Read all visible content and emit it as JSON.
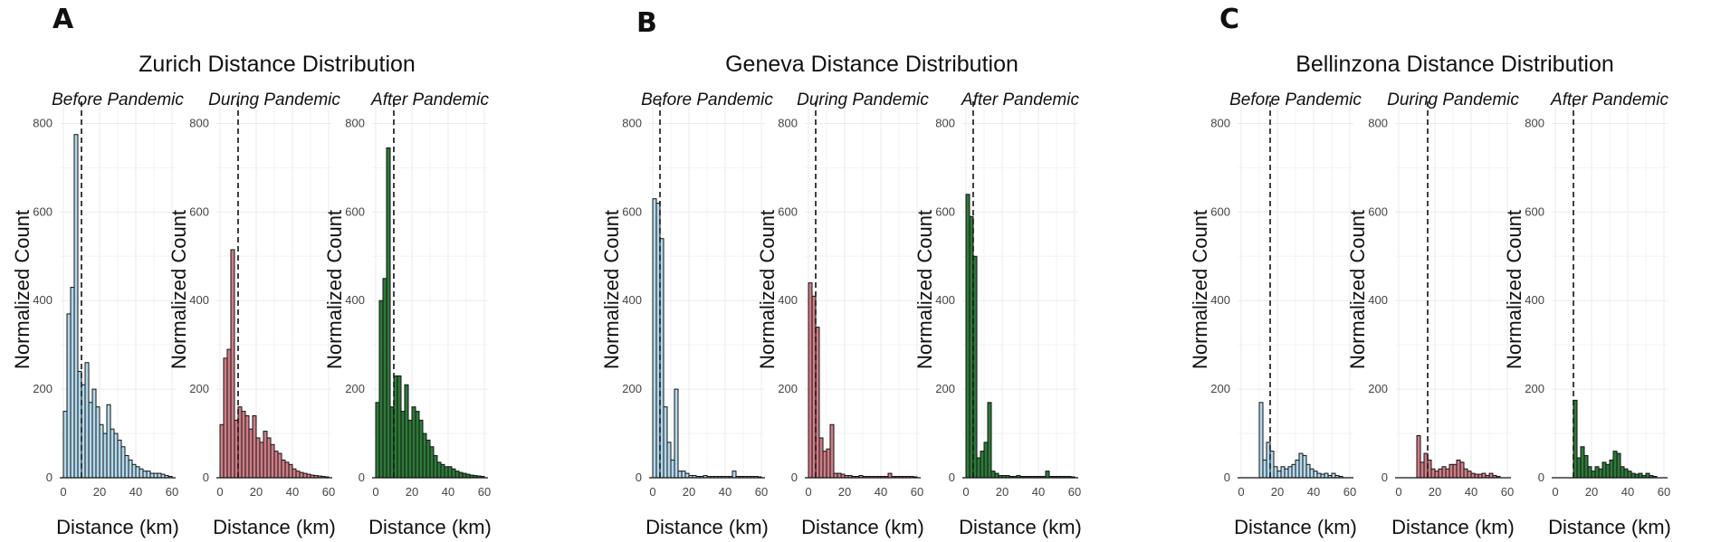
{
  "colors": {
    "before": "#b3d9ee",
    "during": "#cf7d86",
    "after": "#2d7a39"
  },
  "chart_data": [
    {
      "type": "bar",
      "panel": "A",
      "title": "Zurich Distance Distribution",
      "subtitle": "Before Pandemic",
      "colorKey": "before",
      "xlabel": "Distance (km)",
      "ylabel": "Normalized Count",
      "xlim": [
        -2,
        62
      ],
      "ylim": [
        0,
        850
      ],
      "binwidth": 2,
      "xticks": [
        0,
        20,
        40,
        60
      ],
      "yticks": [
        0,
        200,
        400,
        600,
        800
      ],
      "median": 10,
      "values": [
        150,
        370,
        430,
        775,
        240,
        210,
        260,
        170,
        200,
        160,
        120,
        100,
        165,
        110,
        100,
        85,
        70,
        50,
        40,
        30,
        25,
        20,
        15,
        15,
        10,
        10,
        10,
        8,
        5,
        3
      ]
    },
    {
      "type": "bar",
      "panel": "",
      "title": "",
      "subtitle": "During Pandemic",
      "colorKey": "during",
      "xlabel": "Distance (km)",
      "ylabel": "Normalized Count",
      "xlim": [
        -2,
        62
      ],
      "ylim": [
        0,
        850
      ],
      "binwidth": 2,
      "xticks": [
        0,
        20,
        40,
        60
      ],
      "yticks": [
        0,
        200,
        400,
        600,
        800
      ],
      "median": 10,
      "values": [
        120,
        270,
        290,
        515,
        130,
        160,
        150,
        140,
        110,
        140,
        90,
        80,
        105,
        90,
        75,
        60,
        55,
        40,
        35,
        30,
        20,
        15,
        12,
        10,
        8,
        6,
        5,
        4,
        3,
        2
      ]
    },
    {
      "type": "bar",
      "panel": "",
      "title": "",
      "subtitle": "After Pandemic",
      "colorKey": "after",
      "xlabel": "Distance (km)",
      "ylabel": "Normalized Count",
      "xlim": [
        -2,
        62
      ],
      "ylim": [
        0,
        850
      ],
      "binwidth": 2,
      "xticks": [
        0,
        20,
        40,
        60
      ],
      "yticks": [
        0,
        200,
        400,
        600,
        800
      ],
      "median": 10,
      "values": [
        170,
        400,
        450,
        745,
        160,
        230,
        230,
        150,
        210,
        130,
        160,
        150,
        130,
        100,
        85,
        70,
        50,
        35,
        30,
        25,
        25,
        20,
        15,
        12,
        10,
        8,
        6,
        5,
        4,
        3
      ]
    },
    {
      "type": "bar",
      "panel": "B",
      "title": "Geneva Distance Distribution",
      "subtitle": "Before Pandemic",
      "colorKey": "before",
      "xlabel": "Distance (km)",
      "ylabel": "Normalized Count",
      "xlim": [
        -2,
        62
      ],
      "ylim": [
        0,
        850
      ],
      "binwidth": 2,
      "xticks": [
        0,
        20,
        40,
        60
      ],
      "yticks": [
        0,
        200,
        400,
        600,
        800
      ],
      "median": 4,
      "values": [
        630,
        620,
        540,
        160,
        80,
        40,
        200,
        15,
        15,
        10,
        5,
        5,
        3,
        3,
        5,
        3,
        3,
        3,
        3,
        3,
        3,
        3,
        15,
        3,
        3,
        3,
        3,
        3,
        3,
        2
      ]
    },
    {
      "type": "bar",
      "panel": "",
      "title": "",
      "subtitle": "During Pandemic",
      "colorKey": "during",
      "xlabel": "Distance (km)",
      "ylabel": "Normalized Count",
      "xlim": [
        -2,
        62
      ],
      "ylim": [
        0,
        850
      ],
      "binwidth": 2,
      "xticks": [
        0,
        20,
        40,
        60
      ],
      "yticks": [
        0,
        200,
        400,
        600,
        800
      ],
      "median": 4,
      "values": [
        440,
        410,
        340,
        90,
        60,
        65,
        120,
        10,
        10,
        8,
        5,
        5,
        3,
        3,
        5,
        3,
        3,
        3,
        3,
        3,
        3,
        3,
        10,
        3,
        3,
        3,
        3,
        3,
        3,
        2
      ]
    },
    {
      "type": "bar",
      "panel": "",
      "title": "",
      "subtitle": "After Pandemic",
      "colorKey": "after",
      "xlabel": "Distance (km)",
      "ylabel": "Normalized Count",
      "xlim": [
        -2,
        62
      ],
      "ylim": [
        0,
        850
      ],
      "binwidth": 2,
      "xticks": [
        0,
        20,
        40,
        60
      ],
      "yticks": [
        0,
        200,
        400,
        600,
        800
      ],
      "median": 4,
      "values": [
        640,
        590,
        500,
        45,
        60,
        80,
        170,
        15,
        10,
        5,
        5,
        5,
        3,
        3,
        5,
        3,
        3,
        3,
        3,
        3,
        3,
        3,
        15,
        3,
        3,
        3,
        3,
        3,
        3,
        2
      ]
    },
    {
      "type": "bar",
      "panel": "C",
      "title": "Bellinzona Distance Distribution",
      "subtitle": "Before Pandemic",
      "colorKey": "before",
      "xlabel": "Distance (km)",
      "ylabel": "Normalized Count",
      "xlim": [
        -2,
        62
      ],
      "ylim": [
        0,
        850
      ],
      "binwidth": 2,
      "xticks": [
        0,
        20,
        40,
        60
      ],
      "yticks": [
        0,
        200,
        400,
        600,
        800
      ],
      "median": 16,
      "values": [
        0,
        0,
        0,
        0,
        0,
        170,
        40,
        80,
        60,
        25,
        15,
        25,
        20,
        25,
        30,
        40,
        55,
        50,
        30,
        20,
        15,
        10,
        8,
        10,
        5,
        10,
        5,
        3,
        0,
        0
      ]
    },
    {
      "type": "bar",
      "panel": "",
      "title": "",
      "subtitle": "During Pandemic",
      "colorKey": "during",
      "xlabel": "Distance (km)",
      "ylabel": "Normalized Count",
      "xlim": [
        -2,
        62
      ],
      "ylim": [
        0,
        850
      ],
      "binwidth": 2,
      "xticks": [
        0,
        20,
        40,
        60
      ],
      "yticks": [
        0,
        200,
        400,
        600,
        800
      ],
      "median": 16,
      "values": [
        0,
        0,
        0,
        0,
        0,
        95,
        35,
        55,
        40,
        20,
        15,
        20,
        25,
        20,
        30,
        30,
        40,
        35,
        20,
        15,
        10,
        8,
        8,
        10,
        5,
        10,
        5,
        3,
        0,
        0
      ]
    },
    {
      "type": "bar",
      "panel": "",
      "title": "",
      "subtitle": "After Pandemic",
      "colorKey": "after",
      "xlabel": "Distance (km)",
      "ylabel": "Normalized Count",
      "xlim": [
        -2,
        62
      ],
      "ylim": [
        0,
        850
      ],
      "binwidth": 2,
      "xticks": [
        0,
        20,
        40,
        60
      ],
      "yticks": [
        0,
        200,
        400,
        600,
        800
      ],
      "median": 10,
      "values": [
        0,
        0,
        0,
        0,
        0,
        175,
        45,
        70,
        50,
        25,
        15,
        25,
        20,
        35,
        30,
        40,
        60,
        55,
        25,
        20,
        15,
        10,
        8,
        10,
        5,
        10,
        5,
        3,
        0,
        0
      ]
    }
  ]
}
